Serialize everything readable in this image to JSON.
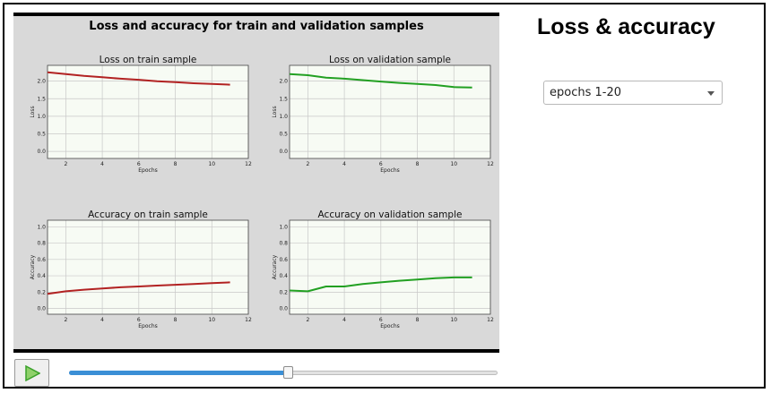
{
  "figure_title": "Loss and accuracy for train and validation samples",
  "app_title": "Loss & accuracy",
  "dropdown": {
    "selected": "epochs 1-20"
  },
  "controls": {
    "play_icon": "play-icon",
    "slider_fraction": 0.51
  },
  "colors": {
    "train": "#b22222",
    "validation": "#22a022",
    "slider_fill": "#3b8fd6",
    "play": "#3aa12a"
  },
  "chart_data": [
    {
      "type": "line",
      "title": "Loss on train sample",
      "xlabel": "Epochs",
      "ylabel": "Loss",
      "xlim": [
        1,
        12
      ],
      "ylim": [
        -0.2,
        2.45
      ],
      "grid": true,
      "xticks": [
        "2",
        "4",
        "6",
        "8",
        "10",
        "12"
      ],
      "xtick_values": [
        2,
        4,
        6,
        8,
        10,
        12
      ],
      "yticks": [
        "0.0",
        "0.5",
        "1.0",
        "1.5",
        "2.0"
      ],
      "ytick_values": [
        0.0,
        0.5,
        1.0,
        1.5,
        2.0
      ],
      "series": [
        {
          "x": [
            1,
            2,
            3,
            4,
            5,
            6,
            7,
            8,
            9,
            10,
            11
          ],
          "values": [
            2.25,
            2.2,
            2.15,
            2.11,
            2.07,
            2.04,
            2.0,
            1.97,
            1.94,
            1.92,
            1.9
          ],
          "color": "#b22222"
        }
      ]
    },
    {
      "type": "line",
      "title": "Loss on validation sample",
      "xlabel": "Epochs",
      "ylabel": "Loss",
      "xlim": [
        1,
        12
      ],
      "ylim": [
        -0.2,
        2.45
      ],
      "grid": true,
      "xticks": [
        "2",
        "4",
        "6",
        "8",
        "10",
        "12"
      ],
      "xtick_values": [
        2,
        4,
        6,
        8,
        10,
        12
      ],
      "yticks": [
        "0.0",
        "0.5",
        "1.0",
        "1.5",
        "2.0"
      ],
      "ytick_values": [
        0.0,
        0.5,
        1.0,
        1.5,
        2.0
      ],
      "series": [
        {
          "x": [
            1,
            2,
            3,
            4,
            5,
            6,
            7,
            8,
            9,
            10,
            11
          ],
          "values": [
            2.2,
            2.17,
            2.1,
            2.07,
            2.03,
            1.99,
            1.95,
            1.92,
            1.89,
            1.83,
            1.82
          ],
          "color": "#22a022"
        }
      ]
    },
    {
      "type": "line",
      "title": "Accuracy on train sample",
      "xlabel": "Epochs",
      "ylabel": "Accuracy",
      "xlim": [
        1,
        12
      ],
      "ylim": [
        -0.07,
        1.08
      ],
      "grid": true,
      "xticks": [
        "2",
        "4",
        "6",
        "8",
        "10",
        "12"
      ],
      "xtick_values": [
        2,
        4,
        6,
        8,
        10,
        12
      ],
      "yticks": [
        "0.0",
        "0.2",
        "0.4",
        "0.6",
        "0.8",
        "1.0"
      ],
      "ytick_values": [
        0.0,
        0.2,
        0.4,
        0.6,
        0.8,
        1.0
      ],
      "series": [
        {
          "x": [
            1,
            2,
            3,
            4,
            5,
            6,
            7,
            8,
            9,
            10,
            11
          ],
          "values": [
            0.18,
            0.21,
            0.23,
            0.245,
            0.26,
            0.27,
            0.28,
            0.29,
            0.3,
            0.31,
            0.32
          ],
          "color": "#b22222"
        }
      ]
    },
    {
      "type": "line",
      "title": "Accuracy on validation sample",
      "xlabel": "Epochs",
      "ylabel": "Accuracy",
      "xlim": [
        1,
        12
      ],
      "ylim": [
        -0.07,
        1.08
      ],
      "grid": true,
      "xticks": [
        "2",
        "4",
        "6",
        "8",
        "10",
        "12"
      ],
      "xtick_values": [
        2,
        4,
        6,
        8,
        10,
        12
      ],
      "yticks": [
        "0.0",
        "0.2",
        "0.4",
        "0.6",
        "0.8",
        "1.0"
      ],
      "ytick_values": [
        0.0,
        0.2,
        0.4,
        0.6,
        0.8,
        1.0
      ],
      "series": [
        {
          "x": [
            1,
            2,
            3,
            4,
            5,
            6,
            7,
            8,
            9,
            10,
            11
          ],
          "values": [
            0.22,
            0.21,
            0.27,
            0.27,
            0.3,
            0.32,
            0.34,
            0.355,
            0.37,
            0.38,
            0.38
          ],
          "color": "#22a022"
        }
      ]
    }
  ]
}
